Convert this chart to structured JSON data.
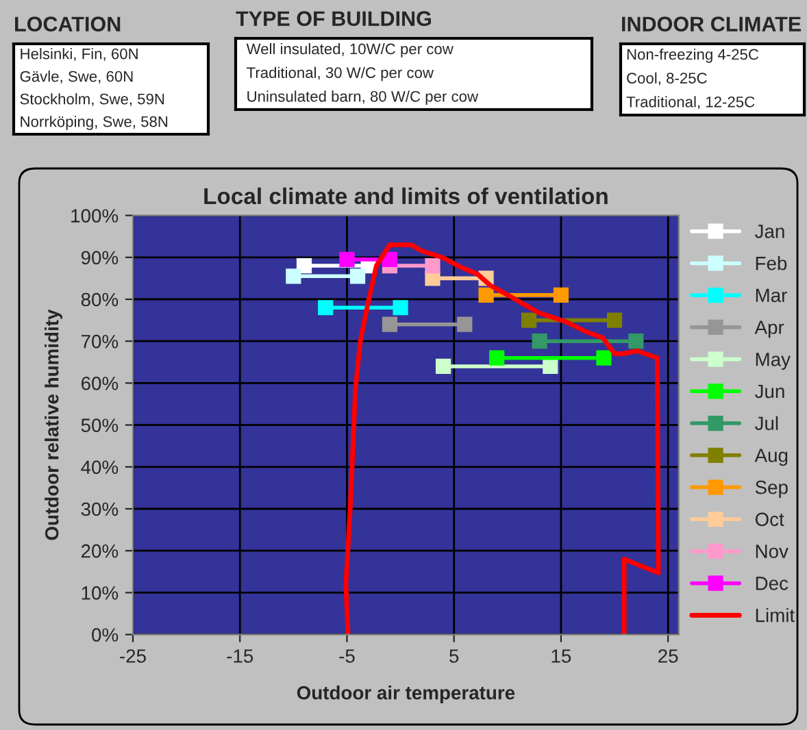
{
  "chart_data": [
    {
      "type": "other",
      "title": "LOCATION",
      "annotations": [
        "Helsinki, Fin, 60N",
        "Gävle, Swe, 60N",
        "Stockholm, Swe, 59N",
        "Norrköping, Swe, 58N"
      ]
    },
    {
      "type": "other",
      "title": "TYPE OF BUILDING",
      "annotations": [
        "Well insulated, 10W/C per cow",
        "Traditional, 30 W/C per cow",
        "Uninsulated barn, 80 W/C per cow"
      ]
    },
    {
      "type": "other",
      "title": "INDOOR CLIMATE",
      "annotations": [
        "Non-freezing 4-25C",
        "Cool, 8-25C",
        "Traditional, 12-25C"
      ]
    },
    {
      "type": "line",
      "title": "Local climate and limits of ventilation",
      "xlabel": "Outdoor air temperature",
      "ylabel": "Outdoor relative humidity",
      "xlim": [
        -25,
        26
      ],
      "xticks": [
        -25,
        -15,
        -5,
        5,
        15,
        25
      ],
      "ylim": [
        0,
        100
      ],
      "yticks": [
        {
          "value": 0,
          "label": "0%"
        },
        {
          "value": 10,
          "label": "10%"
        },
        {
          "value": 20,
          "label": "20%"
        },
        {
          "value": 30,
          "label": "30%"
        },
        {
          "value": 40,
          "label": "40%"
        },
        {
          "value": 50,
          "label": "50%"
        },
        {
          "value": 60,
          "label": "60%"
        },
        {
          "value": 70,
          "label": "70%"
        },
        {
          "value": 80,
          "label": "80%"
        },
        {
          "value": 90,
          "label": "90%"
        },
        {
          "value": 100,
          "label": "100%"
        }
      ],
      "grid": true,
      "legend": "right",
      "marker": "square",
      "line_style": "solid",
      "series": [
        {
          "name": "Jan",
          "color": "#ffffff",
          "x": [
            -9,
            -3
          ],
          "values": [
            88,
            88
          ]
        },
        {
          "name": "Feb",
          "color": "#ccffff",
          "x": [
            -10,
            -4
          ],
          "values": [
            85.5,
            85.5
          ]
        },
        {
          "name": "Mar",
          "color": "#00ffff",
          "x": [
            -7,
            0
          ],
          "values": [
            78,
            78
          ]
        },
        {
          "name": "Apr",
          "color": "#969696",
          "x": [
            -1,
            6
          ],
          "values": [
            74,
            74
          ]
        },
        {
          "name": "May",
          "color": "#ccffcc",
          "x": [
            4,
            14
          ],
          "values": [
            64,
            64
          ]
        },
        {
          "name": "Jun",
          "color": "#00ff00",
          "x": [
            9,
            19
          ],
          "values": [
            66,
            66
          ]
        },
        {
          "name": "Jul",
          "color": "#339966",
          "x": [
            13,
            22
          ],
          "values": [
            70,
            70
          ]
        },
        {
          "name": "Aug",
          "color": "#808000",
          "x": [
            12,
            20
          ],
          "values": [
            75,
            75
          ]
        },
        {
          "name": "Sep",
          "color": "#ff9900",
          "x": [
            8,
            15
          ],
          "values": [
            81,
            81
          ]
        },
        {
          "name": "Oct",
          "color": "#ffcc99",
          "x": [
            3,
            8
          ],
          "values": [
            85,
            85
          ]
        },
        {
          "name": "Nov",
          "color": "#ff99cc",
          "x": [
            -1,
            3
          ],
          "values": [
            88,
            88
          ]
        },
        {
          "name": "Dec",
          "color": "#ff00ff",
          "x": [
            -5,
            -1
          ],
          "values": [
            89.5,
            89.5
          ]
        },
        {
          "name": "Limit",
          "color": "#ff0000",
          "marker": "none",
          "x": [
            -4.9,
            -5.1,
            -4.7,
            -4.2,
            -3.75,
            -3,
            -2.25,
            -1,
            1,
            2,
            3.9,
            5.6,
            7.2,
            8.4,
            10.3,
            12.9,
            15.5,
            17.2,
            18.9,
            20,
            20.8,
            22.1,
            24,
            24.1,
            20.9,
            20.9
          ],
          "values": [
            0,
            12,
            30,
            59,
            70,
            79.5,
            88,
            93,
            93,
            91.5,
            90,
            87.7,
            86,
            83.3,
            80.6,
            76.8,
            74.6,
            72.4,
            70.8,
            67,
            67,
            67.7,
            66,
            14.7,
            18,
            0
          ]
        }
      ]
    }
  ]
}
